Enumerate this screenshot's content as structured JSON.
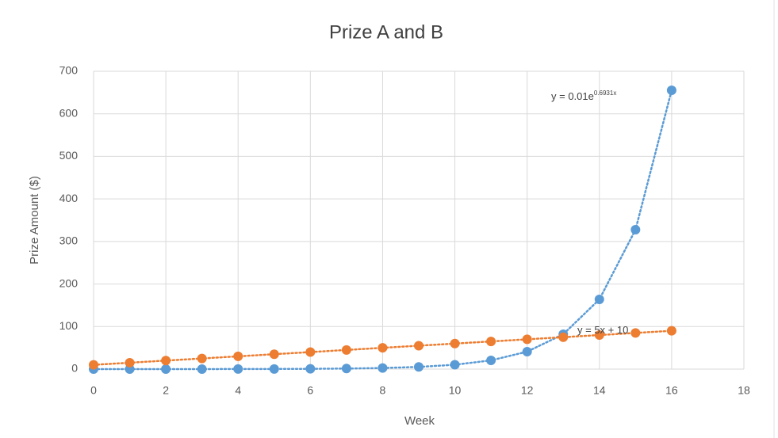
{
  "chart_data": {
    "type": "scatter",
    "title": "Prize A and B",
    "x_label": "Week",
    "y_label": "Prize Amount ($)",
    "x": [
      0,
      1,
      2,
      3,
      4,
      5,
      6,
      7,
      8,
      9,
      10,
      11,
      12,
      13,
      14,
      15,
      16
    ],
    "series": [
      {
        "color": "#5b9bd5",
        "line_style": "dotted",
        "values": [
          0.01,
          0.02,
          0.04,
          0.08,
          0.16,
          0.32,
          0.64,
          1.28,
          2.56,
          5.12,
          10.24,
          20.48,
          40.96,
          81.92,
          163.84,
          327.68,
          655.36
        ]
      },
      {
        "color": "#ed7d31",
        "line_style": "dotted",
        "values": [
          10,
          15,
          20,
          25,
          30,
          35,
          40,
          45,
          50,
          55,
          60,
          65,
          70,
          75,
          80,
          85,
          90
        ]
      }
    ],
    "annotations": [
      {
        "text": "y = 0.01e",
        "superscript": "0.6931x"
      },
      {
        "text": "y = 5x + 10"
      }
    ],
    "xlim": [
      0,
      18
    ],
    "xticks": [
      0,
      2,
      4,
      6,
      8,
      10,
      12,
      14,
      16,
      18
    ],
    "ylim": [
      0,
      700
    ],
    "yticks": [
      0,
      100,
      200,
      300,
      400,
      500,
      600,
      700
    ],
    "grid": true
  }
}
